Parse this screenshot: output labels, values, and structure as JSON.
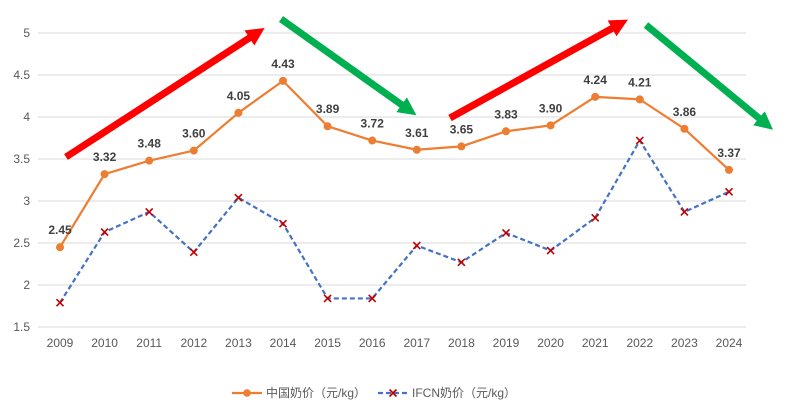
{
  "chart_data": {
    "type": "line",
    "categories": [
      "2009",
      "2010",
      "2011",
      "2012",
      "2013",
      "2014",
      "2015",
      "2016",
      "2017",
      "2018",
      "2019",
      "2020",
      "2021",
      "2022",
      "2023",
      "2024"
    ],
    "series": [
      {
        "name": "中国奶价（元/kg）",
        "color": "#ED7D31",
        "marker": "circle",
        "line_style": "solid",
        "values": [
          2.45,
          3.32,
          3.48,
          3.6,
          4.05,
          4.43,
          3.89,
          3.72,
          3.61,
          3.65,
          3.83,
          3.9,
          4.24,
          4.21,
          3.86,
          3.37
        ],
        "data_labels": [
          "2.45",
          "3.32",
          "3.48",
          "3.60",
          "4.05",
          "4.43",
          "3.89",
          "3.72",
          "3.61",
          "3.65",
          "3.83",
          "3.90",
          "4.24",
          "4.21",
          "3.86",
          "3.37"
        ]
      },
      {
        "name": "IFCN奶价（元/kg）",
        "color": "#4472C4",
        "marker": "x",
        "marker_color": "#C00000",
        "line_style": "dashed",
        "values": [
          1.79,
          2.63,
          2.87,
          2.39,
          3.04,
          2.73,
          1.84,
          1.84,
          2.47,
          2.27,
          2.62,
          2.41,
          2.8,
          3.72,
          2.87,
          3.11
        ]
      }
    ],
    "y_ticks": [
      "1.5",
      "2",
      "2.5",
      "3",
      "3.5",
      "4",
      "4.5",
      "5"
    ],
    "ylim": [
      1.5,
      5
    ],
    "grid": true,
    "legend_position": "bottom",
    "trend_arrows": [
      {
        "from": "2009",
        "to": "2014",
        "direction": "up",
        "color": "#FF0000"
      },
      {
        "from": "2014",
        "to": "2017",
        "direction": "down",
        "color": "#00B050"
      },
      {
        "from": "2017",
        "to": "2022",
        "direction": "up",
        "color": "#FF0000"
      },
      {
        "from": "2022",
        "to": "2024",
        "direction": "down",
        "color": "#00B050"
      }
    ]
  }
}
